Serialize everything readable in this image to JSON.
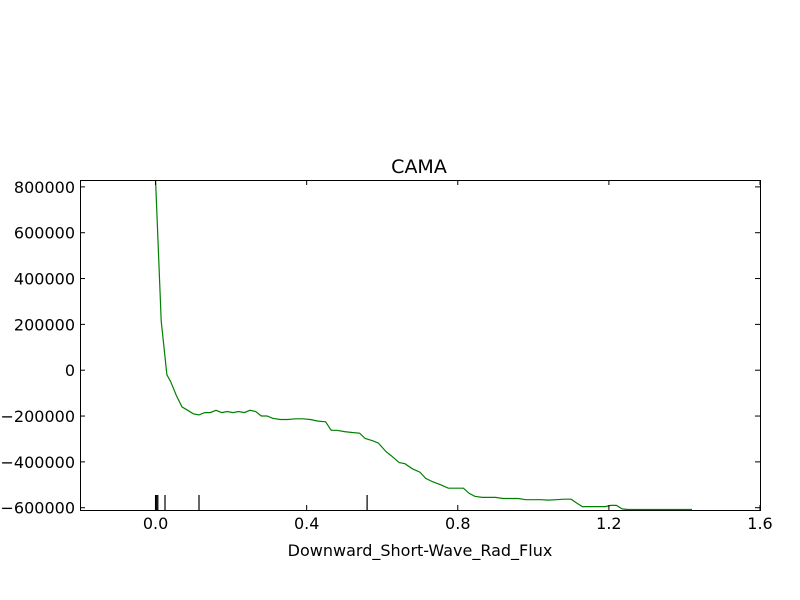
{
  "chart_data": {
    "type": "line",
    "title": "CAMA",
    "xlabel": "Downward_Short-Wave_Rad_Flux",
    "ylabel": "",
    "xlim": [
      -0.2,
      1.6
    ],
    "ylim": [
      -610000,
      830000
    ],
    "xticks": [
      0.0,
      0.4,
      0.8,
      1.2,
      1.6
    ],
    "xtick_labels": [
      "0.0",
      "0.4",
      "0.8",
      "1.2",
      "1.6"
    ],
    "yticks": [
      800000,
      600000,
      400000,
      200000,
      0,
      -200000,
      -400000,
      -600000
    ],
    "ytick_labels": [
      "800000",
      "600000",
      "400000",
      "200000",
      "0",
      "−200000",
      "−400000",
      "−600000"
    ],
    "grid": false,
    "series": [
      {
        "color": "#008000",
        "x": [
          0.0,
          0.015,
          0.03,
          0.04,
          0.055,
          0.07,
          0.085,
          0.1,
          0.115,
          0.13,
          0.145,
          0.16,
          0.175,
          0.19,
          0.205,
          0.22,
          0.235,
          0.25,
          0.265,
          0.28,
          0.295,
          0.31,
          0.33,
          0.35,
          0.37,
          0.39,
          0.41,
          0.43,
          0.45,
          0.465,
          0.48,
          0.5,
          0.52,
          0.54,
          0.555,
          0.575,
          0.59,
          0.61,
          0.625,
          0.645,
          0.66,
          0.68,
          0.7,
          0.715,
          0.735,
          0.755,
          0.775,
          0.795,
          0.815,
          0.83,
          0.845,
          0.865,
          0.885,
          0.9,
          0.92,
          0.94,
          0.96,
          0.98,
          1.0,
          1.02,
          1.04,
          1.06,
          1.08,
          1.1,
          1.115,
          1.13,
          1.15,
          1.17,
          1.19,
          1.205,
          1.22,
          1.235,
          1.25,
          1.3,
          1.35,
          1.42
        ],
        "y": [
          825000,
          215000,
          -20000,
          -50000,
          -110000,
          -160000,
          -175000,
          -190000,
          -195000,
          -185000,
          -185000,
          -175000,
          -185000,
          -180000,
          -185000,
          -180000,
          -185000,
          -175000,
          -180000,
          -200000,
          -200000,
          -210000,
          -215000,
          -215000,
          -212000,
          -212000,
          -215000,
          -222000,
          -225000,
          -262000,
          -262000,
          -268000,
          -272000,
          -275000,
          -298000,
          -308000,
          -318000,
          -355000,
          -375000,
          -403000,
          -408000,
          -430000,
          -445000,
          -472000,
          -488000,
          -500000,
          -515000,
          -515000,
          -515000,
          -537000,
          -550000,
          -555000,
          -555000,
          -555000,
          -560000,
          -560000,
          -560000,
          -565000,
          -565000,
          -565000,
          -567000,
          -565000,
          -563000,
          -563000,
          -580000,
          -595000,
          -595000,
          -595000,
          -595000,
          -590000,
          -590000,
          -605000,
          -608000,
          -608000,
          -608000,
          -608000
        ]
      }
    ],
    "rug_x": [
      0.0,
      0.003,
      0.006,
      0.025,
      0.115,
      0.56
    ]
  }
}
